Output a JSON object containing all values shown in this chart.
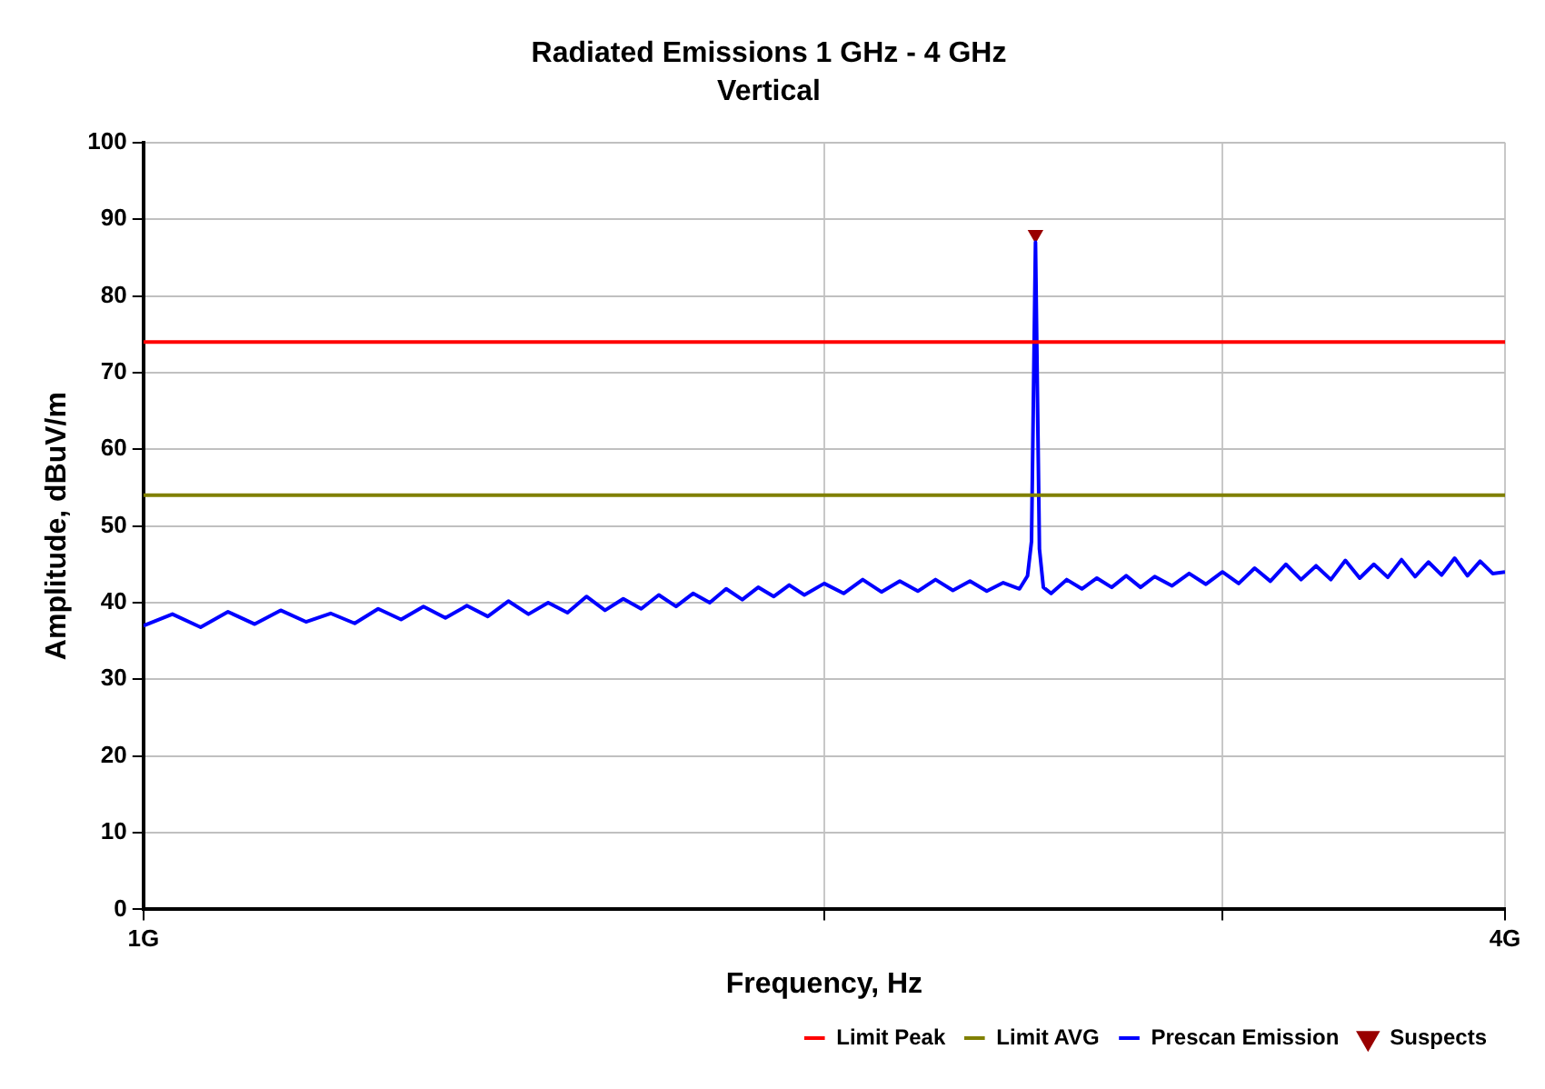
{
  "chart_data": {
    "type": "line",
    "title": "Radiated Emissions 1 GHz - 4 GHz",
    "subtitle": "Vertical",
    "xlabel": "Frequency, Hz",
    "ylabel": "Amplitude, dBuV/m",
    "log": "x",
    "xlim": [
      1,
      4
    ],
    "xticks": [
      {
        "value": 1,
        "label": "1G"
      },
      {
        "value": 2,
        "label": null
      },
      {
        "value": 3,
        "label": null
      },
      {
        "value": 4,
        "label": "4G"
      }
    ],
    "ylim": [
      0,
      100
    ],
    "yticks": [
      0,
      10,
      20,
      30,
      40,
      50,
      60,
      70,
      80,
      90,
      100
    ],
    "grid": true,
    "legend": "bottom right",
    "series": [
      {
        "name": "Limit Peak",
        "color": "#ff0000",
        "x": [
          1,
          4
        ],
        "values": [
          74,
          74
        ]
      },
      {
        "name": "Limit AVG",
        "color": "#808000",
        "x": [
          1,
          4
        ],
        "values": [
          54,
          54
        ]
      },
      {
        "name": "Prescan Emission",
        "color": "#0000ff",
        "x": [
          1.0,
          1.03,
          1.06,
          1.09,
          1.12,
          1.15,
          1.18,
          1.21,
          1.24,
          1.27,
          1.3,
          1.33,
          1.36,
          1.39,
          1.42,
          1.45,
          1.48,
          1.51,
          1.54,
          1.57,
          1.6,
          1.63,
          1.66,
          1.69,
          1.72,
          1.75,
          1.78,
          1.81,
          1.84,
          1.87,
          1.9,
          1.93,
          1.96,
          2.0,
          2.04,
          2.08,
          2.12,
          2.16,
          2.2,
          2.24,
          2.28,
          2.32,
          2.36,
          2.4,
          2.44,
          2.46,
          2.47,
          2.48,
          2.49,
          2.5,
          2.52,
          2.56,
          2.6,
          2.64,
          2.68,
          2.72,
          2.76,
          2.8,
          2.85,
          2.9,
          2.95,
          3.0,
          3.05,
          3.1,
          3.15,
          3.2,
          3.25,
          3.3,
          3.35,
          3.4,
          3.45,
          3.5,
          3.55,
          3.6,
          3.65,
          3.7,
          3.75,
          3.8,
          3.85,
          3.9,
          3.95,
          4.0
        ],
        "values": [
          37,
          38.5,
          36.8,
          38.8,
          37.2,
          39,
          37.5,
          38.6,
          37.3,
          39.2,
          37.8,
          39.5,
          38,
          39.6,
          38.2,
          40.2,
          38.5,
          40,
          38.7,
          40.8,
          39,
          40.5,
          39.2,
          41,
          39.5,
          41.2,
          40,
          41.8,
          40.4,
          42,
          40.8,
          42.3,
          41,
          42.5,
          41.2,
          43,
          41.4,
          42.8,
          41.5,
          43,
          41.6,
          42.8,
          41.5,
          42.6,
          41.8,
          43.5,
          48,
          87,
          47,
          42,
          41.2,
          43,
          41.8,
          43.2,
          42,
          43.5,
          42,
          43.4,
          42.2,
          43.8,
          42.4,
          44,
          42.5,
          44.5,
          42.8,
          45,
          43,
          44.8,
          43,
          45.5,
          43.2,
          45,
          43.3,
          45.6,
          43.4,
          45.3,
          43.6,
          45.8,
          43.5,
          45.4,
          43.8,
          44
        ]
      },
      {
        "name": "Suspects",
        "type": "scatter",
        "marker": "triangle",
        "color": "#990000",
        "x": [
          2.48
        ],
        "values": [
          88
        ]
      }
    ]
  }
}
